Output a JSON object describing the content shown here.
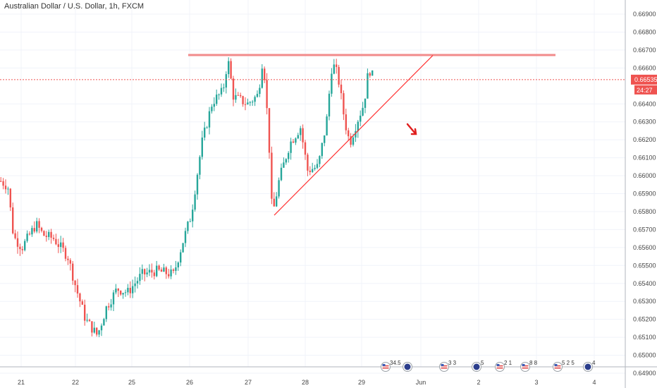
{
  "title": "Australian Dollar / U.S. Dollar, 1h, FXCM",
  "colors": {
    "up": "#26a69a",
    "down": "#ef5350",
    "grid": "#f0f3fa",
    "axis": "#b2b5be",
    "last_price_bg": "#ef5350",
    "resistance": "#f28b8b",
    "trendline": "#ff3333"
  },
  "chart_data": {
    "type": "candlestick",
    "title": "Australian Dollar / U.S. Dollar, 1h, FXCM",
    "ylim": [
      0.649,
      0.67
    ],
    "y_ticks": [
      "0.66900",
      "0.66800",
      "0.66700",
      "0.66600",
      "0.66400",
      "0.66300",
      "0.66200",
      "0.66100",
      "0.66000",
      "0.65900",
      "0.65800",
      "0.65700",
      "0.65600",
      "0.65500",
      "0.65400",
      "0.65300",
      "0.65200",
      "0.65100",
      "0.65000",
      "0.64900"
    ],
    "x_ticks": [
      "21",
      "22",
      "25",
      "26",
      "27",
      "28",
      "29",
      "Jun",
      "2",
      "3",
      "4"
    ],
    "last_price": "0.66535",
    "last_price_value": 0.66535,
    "countdown": "24:27",
    "resistance_level": 0.66672,
    "trendline": {
      "from": [
        0.0,
        0.6578
      ],
      "to": [
        0.0,
        0.6667
      ]
    },
    "grid": true
  },
  "calendar_events": [
    {
      "label": "34.5",
      "flag": "us-flag"
    },
    {
      "label": "",
      "flag": "au-flag"
    },
    {
      "label": "3 3",
      "flag": "us-flag"
    },
    {
      "label": "5",
      "flag": "au-flag"
    },
    {
      "label": "2 1",
      "flag": "us-flag"
    },
    {
      "label": "8 8",
      "flag": "us-flag"
    },
    {
      "label": "5 2 5",
      "flag": "us-flag"
    },
    {
      "label": "4",
      "flag": "au-flag"
    }
  ],
  "annotations": {
    "arrow": "down-arrow"
  }
}
